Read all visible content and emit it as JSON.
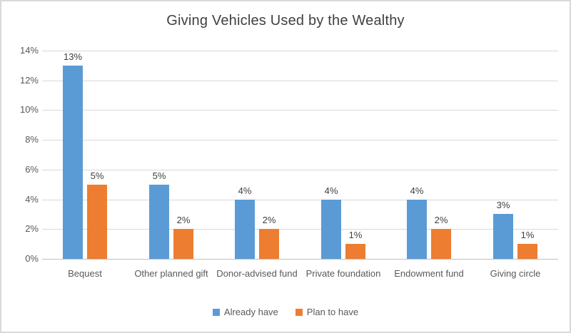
{
  "chart_data": {
    "type": "bar",
    "title": "Giving Vehicles Used by the Wealthy",
    "categories": [
      "Bequest",
      "Other planned gift",
      "Donor-advised fund",
      "Private foundation",
      "Endowment fund",
      "Giving circle"
    ],
    "series": [
      {
        "name": "Already have",
        "color": "#5B9BD5",
        "values": [
          13,
          5,
          4,
          4,
          4,
          3
        ]
      },
      {
        "name": "Plan to have",
        "color": "#ED7D31",
        "values": [
          5,
          2,
          2,
          1,
          2,
          1
        ]
      }
    ],
    "data_labels": [
      [
        "13%",
        "5%",
        "4%",
        "4%",
        "4%",
        "3%"
      ],
      [
        "5%",
        "2%",
        "2%",
        "1%",
        "2%",
        "1%"
      ]
    ],
    "value_suffix": "%",
    "ylim": [
      0,
      14
    ],
    "ytick_values": [
      0,
      2,
      4,
      6,
      8,
      10,
      12,
      14
    ],
    "ytick_labels": [
      "0%",
      "2%",
      "4%",
      "6%",
      "8%",
      "10%",
      "12%",
      "14%"
    ],
    "grid": true,
    "legend_position": "bottom"
  },
  "colors": {
    "gridline": "#D9D9D9",
    "axis_line": "#BFBFBF",
    "axis_text": "#595959",
    "data_label_text": "#404040",
    "title_text": "#404040",
    "border": "#D9D9D9",
    "background": "#FFFFFF"
  }
}
